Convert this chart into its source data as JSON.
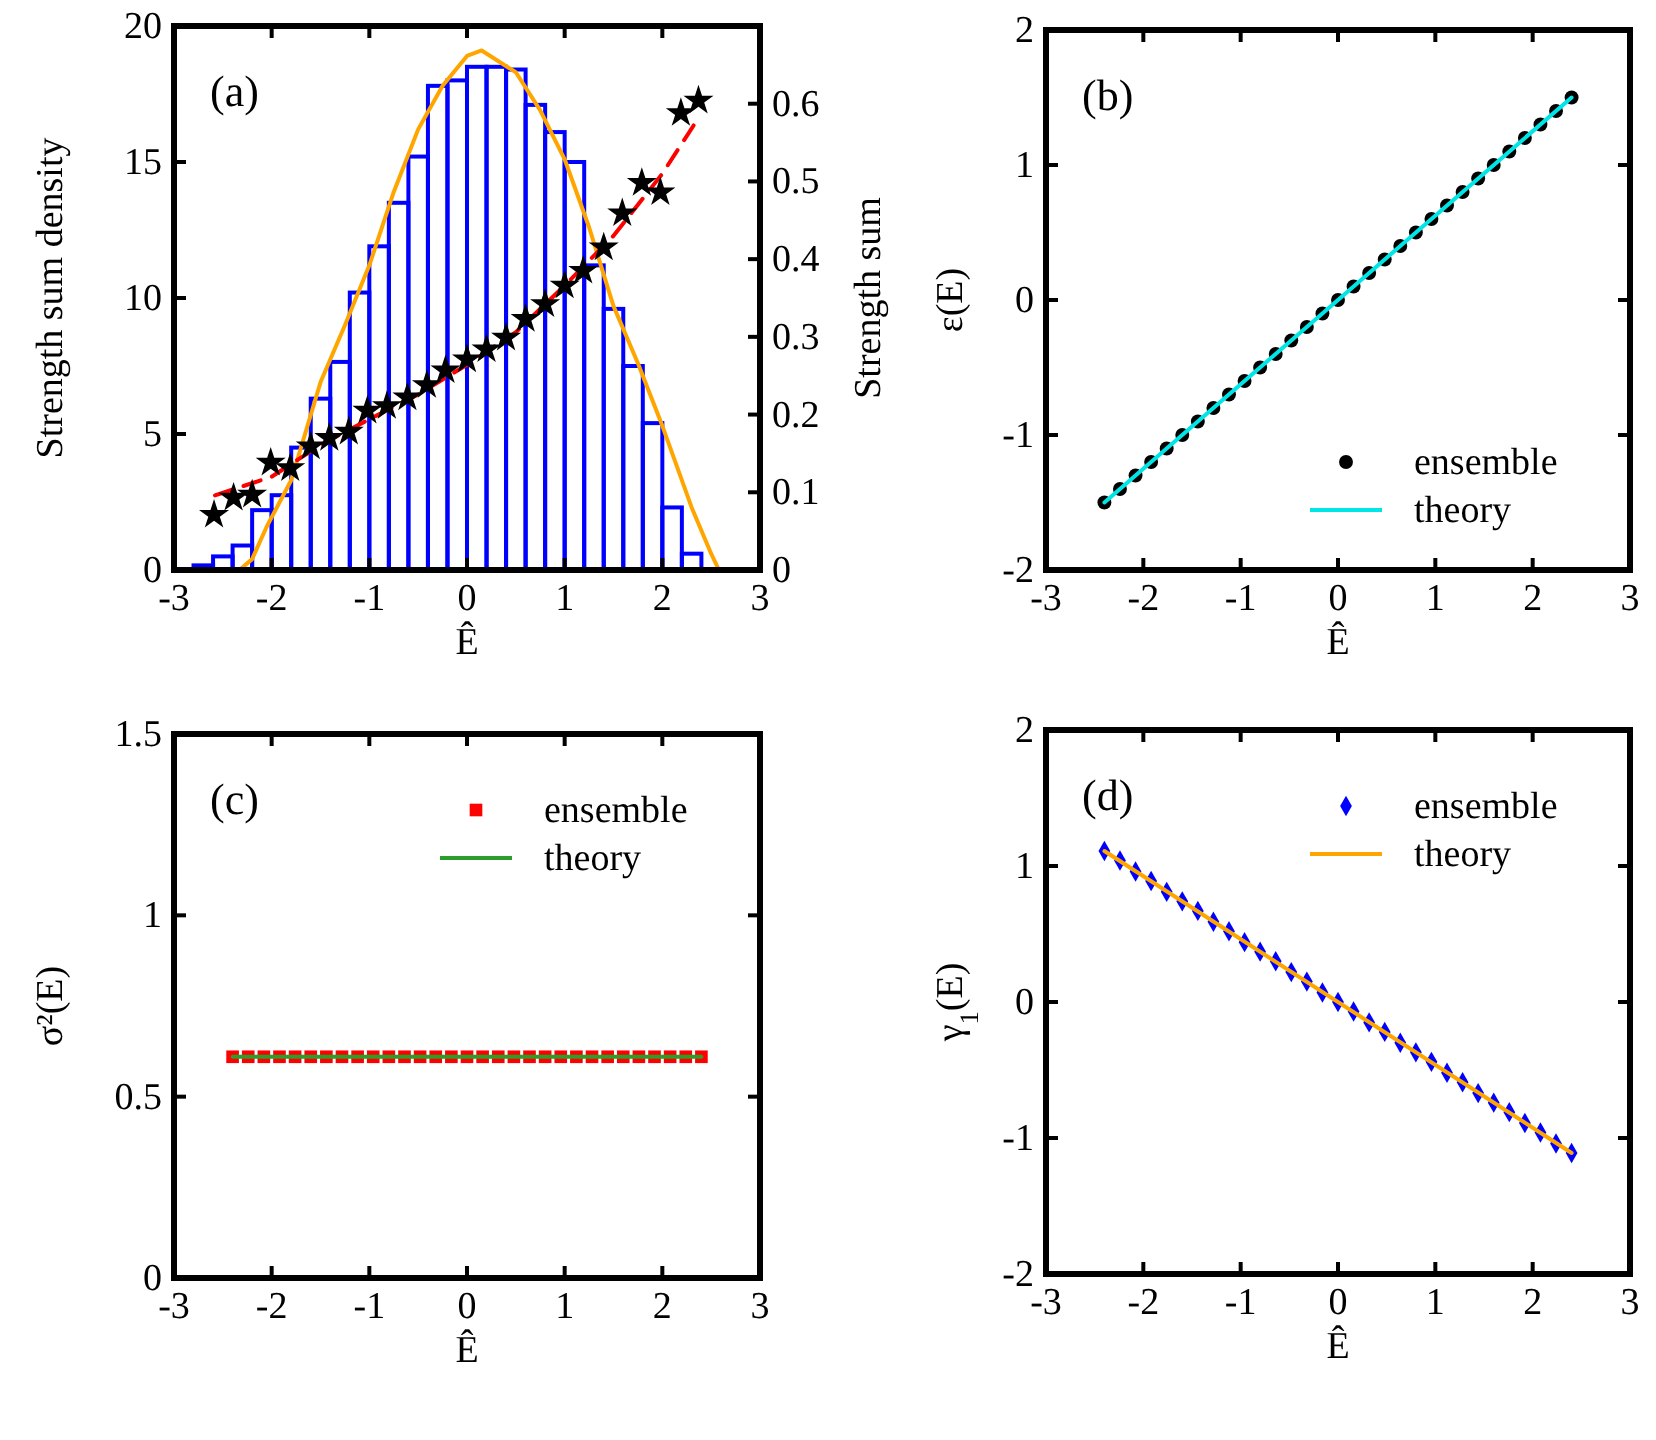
{
  "chart_data": [
    {
      "type": "histogram",
      "annotations": [
        "(a)"
      ],
      "xlabel": "Ê",
      "ylabel": "Strength sum density",
      "y2label": "Strength sum",
      "xlim": [
        -3,
        3
      ],
      "xticks": [
        -3,
        -2,
        -1,
        0,
        1,
        2,
        3
      ],
      "ylim": [
        0,
        20
      ],
      "yticks": [
        0,
        5,
        10,
        15,
        20
      ],
      "y2lim": [
        0,
        0.7
      ],
      "y2ticks": [
        0,
        0.1,
        0.2,
        0.3,
        0.4,
        0.5,
        0.6
      ],
      "color": "#0000ff",
      "bins": [
        -2.8,
        -2.6,
        -2.4,
        -2.2,
        -2.0,
        -1.8,
        -1.6,
        -1.4,
        -1.2,
        -1.0,
        -0.8,
        -0.6,
        -0.4,
        -0.2,
        0,
        0.2,
        0.4,
        0.6,
        0.8,
        1.0,
        1.2,
        1.4,
        1.6,
        1.8,
        2.0,
        2.2,
        2.4
      ],
      "values": [
        0.17,
        0.5,
        0.9,
        2.2,
        2.75,
        4.5,
        6.3,
        7.65,
        10.2,
        11.9,
        13.5,
        15.2,
        17.8,
        18.0,
        18.5,
        18.5,
        18.4,
        17.1,
        16.1,
        15.0,
        11.2,
        9.6,
        7.5,
        5.4,
        2.3,
        0.6
      ],
      "series": [
        {
          "type": "line",
          "color": "#ffa500",
          "x": [
            -2.33,
            -2.2,
            -2.05,
            -1.8,
            -1.5,
            -1.25,
            -1,
            -0.75,
            -0.5,
            -0.25,
            0,
            0.15,
            0.5,
            0.75,
            1,
            1.25,
            1.5,
            1.75,
            2,
            2.3,
            2.5,
            2.58
          ],
          "values": [
            0,
            0.4,
            1.6,
            3.3,
            6.9,
            9.0,
            11.2,
            13.9,
            16.2,
            17.8,
            18.9,
            19.1,
            18.3,
            16.9,
            15.1,
            12.6,
            9.7,
            7.6,
            5.3,
            2.3,
            0.6,
            0
          ]
        },
        {
          "type": "line",
          "axis": "y2",
          "color": "#ff0000",
          "line_style": "dashed",
          "x": [
            -2.58,
            -2,
            -1.5,
            -1,
            -0.5,
            0,
            0.5,
            1,
            1.5,
            2,
            2.32
          ],
          "values": [
            0.096,
            0.12,
            0.161,
            0.194,
            0.226,
            0.264,
            0.306,
            0.366,
            0.43,
            0.51,
            0.572
          ]
        },
        {
          "type": "scatter",
          "axis": "y2",
          "color": "#000000",
          "marker": "star",
          "x": [
            -2.59,
            -2.39,
            -2.2,
            -2.01,
            -1.81,
            -1.6,
            -1.41,
            -1.21,
            -1.02,
            -0.82,
            -0.61,
            -0.41,
            -0.22,
            0,
            0.2,
            0.4,
            0.6,
            0.8,
            1.0,
            1.19,
            1.4,
            1.59,
            1.79,
            1.98,
            2.19,
            2.37
          ],
          "values": [
            0.071,
            0.093,
            0.097,
            0.138,
            0.131,
            0.159,
            0.17,
            0.178,
            0.205,
            0.211,
            0.222,
            0.238,
            0.257,
            0.271,
            0.284,
            0.299,
            0.323,
            0.342,
            0.366,
            0.385,
            0.415,
            0.459,
            0.498,
            0.486,
            0.588,
            0.604
          ]
        }
      ]
    },
    {
      "type": "scatter",
      "annotations": [
        "(b)"
      ],
      "xlabel": "Ê",
      "ylabel": "ε(E)",
      "xlim": [
        -3,
        3
      ],
      "xticks": [
        -3,
        -2,
        -1,
        0,
        1,
        2,
        3
      ],
      "ylim": [
        -2,
        2
      ],
      "yticks": [
        -2,
        -1,
        0,
        1,
        2
      ],
      "legend": "bottom right",
      "x": [
        -2.4,
        -2.24,
        -2.08,
        -1.92,
        -1.76,
        -1.6,
        -1.44,
        -1.28,
        -1.12,
        -0.96,
        -0.8,
        -0.64,
        -0.48,
        -0.32,
        -0.16,
        0,
        0.16,
        0.32,
        0.48,
        0.64,
        0.8,
        0.96,
        1.12,
        1.28,
        1.44,
        1.6,
        1.76,
        1.92,
        2.08,
        2.24,
        2.4
      ],
      "series": [
        {
          "name": "ensemble",
          "type": "scatter",
          "marker": "circle",
          "color": "#000000",
          "values": [
            -1.5,
            -1.4,
            -1.3,
            -1.2,
            -1.1,
            -1.0,
            -0.9,
            -0.8,
            -0.7,
            -0.6,
            -0.5,
            -0.4,
            -0.3,
            -0.2,
            -0.1,
            0,
            0.1,
            0.2,
            0.3,
            0.4,
            0.5,
            0.6,
            0.7,
            0.8,
            0.9,
            1.0,
            1.1,
            1.2,
            1.3,
            1.4,
            1.5
          ]
        },
        {
          "name": "theory",
          "type": "line",
          "color": "#00e5e5",
          "x": [
            -2.4,
            2.4
          ],
          "values": [
            -1.5,
            1.5
          ]
        }
      ]
    },
    {
      "type": "scatter",
      "annotations": [
        "(c)"
      ],
      "xlabel": "Ê",
      "ylabel": "σ²(E)",
      "xlim": [
        -3,
        3
      ],
      "xticks": [
        -3,
        -2,
        -1,
        0,
        1,
        2,
        3
      ],
      "ylim": [
        0,
        1.5
      ],
      "yticks": [
        0,
        0.5,
        1,
        1.5
      ],
      "legend": "top right",
      "x": [
        -2.4,
        -2.24,
        -2.08,
        -1.92,
        -1.76,
        -1.6,
        -1.44,
        -1.28,
        -1.12,
        -0.96,
        -0.8,
        -0.64,
        -0.48,
        -0.32,
        -0.16,
        0,
        0.16,
        0.32,
        0.48,
        0.64,
        0.8,
        0.96,
        1.12,
        1.28,
        1.44,
        1.6,
        1.76,
        1.92,
        2.08,
        2.24,
        2.4
      ],
      "series": [
        {
          "name": "ensemble",
          "type": "scatter",
          "marker": "square",
          "color": "#ff0000",
          "values": [
            0.61,
            0.61,
            0.61,
            0.61,
            0.61,
            0.61,
            0.61,
            0.61,
            0.61,
            0.61,
            0.61,
            0.61,
            0.61,
            0.61,
            0.61,
            0.61,
            0.61,
            0.61,
            0.61,
            0.61,
            0.61,
            0.61,
            0.61,
            0.61,
            0.61,
            0.61,
            0.61,
            0.61,
            0.61,
            0.61,
            0.61
          ]
        },
        {
          "name": "theory",
          "type": "line",
          "color": "#2a9d2a",
          "x": [
            -2.4,
            2.4
          ],
          "values": [
            0.61,
            0.61
          ]
        }
      ]
    },
    {
      "type": "scatter",
      "annotations": [
        "(d)"
      ],
      "xlabel": "Ê",
      "ylabel": "γ$_{1}$(E)",
      "xlim": [
        -3,
        3
      ],
      "xticks": [
        -3,
        -2,
        -1,
        0,
        1,
        2,
        3
      ],
      "ylim": [
        -2,
        2
      ],
      "yticks": [
        -2,
        -1,
        0,
        1,
        2
      ],
      "legend": "top right",
      "x": [
        -2.4,
        -2.24,
        -2.08,
        -1.92,
        -1.76,
        -1.6,
        -1.44,
        -1.28,
        -1.12,
        -0.96,
        -0.8,
        -0.64,
        -0.48,
        -0.32,
        -0.16,
        0,
        0.16,
        0.32,
        0.48,
        0.64,
        0.8,
        0.96,
        1.12,
        1.28,
        1.44,
        1.6,
        1.76,
        1.92,
        2.08,
        2.24,
        2.4
      ],
      "series": [
        {
          "name": "ensemble",
          "type": "scatter",
          "marker": "diamond",
          "color": "#0000ff",
          "values": [
            1.11,
            1.04,
            0.96,
            0.89,
            0.81,
            0.74,
            0.67,
            0.59,
            0.52,
            0.44,
            0.37,
            0.3,
            0.22,
            0.15,
            0.07,
            0,
            -0.07,
            -0.15,
            -0.22,
            -0.3,
            -0.37,
            -0.44,
            -0.52,
            -0.59,
            -0.67,
            -0.74,
            -0.81,
            -0.89,
            -0.96,
            -1.04,
            -1.11
          ]
        },
        {
          "name": "theory",
          "type": "line",
          "color": "#ffa500",
          "x": [
            -2.4,
            2.4
          ],
          "values": [
            1.11,
            -1.11
          ]
        }
      ]
    }
  ]
}
